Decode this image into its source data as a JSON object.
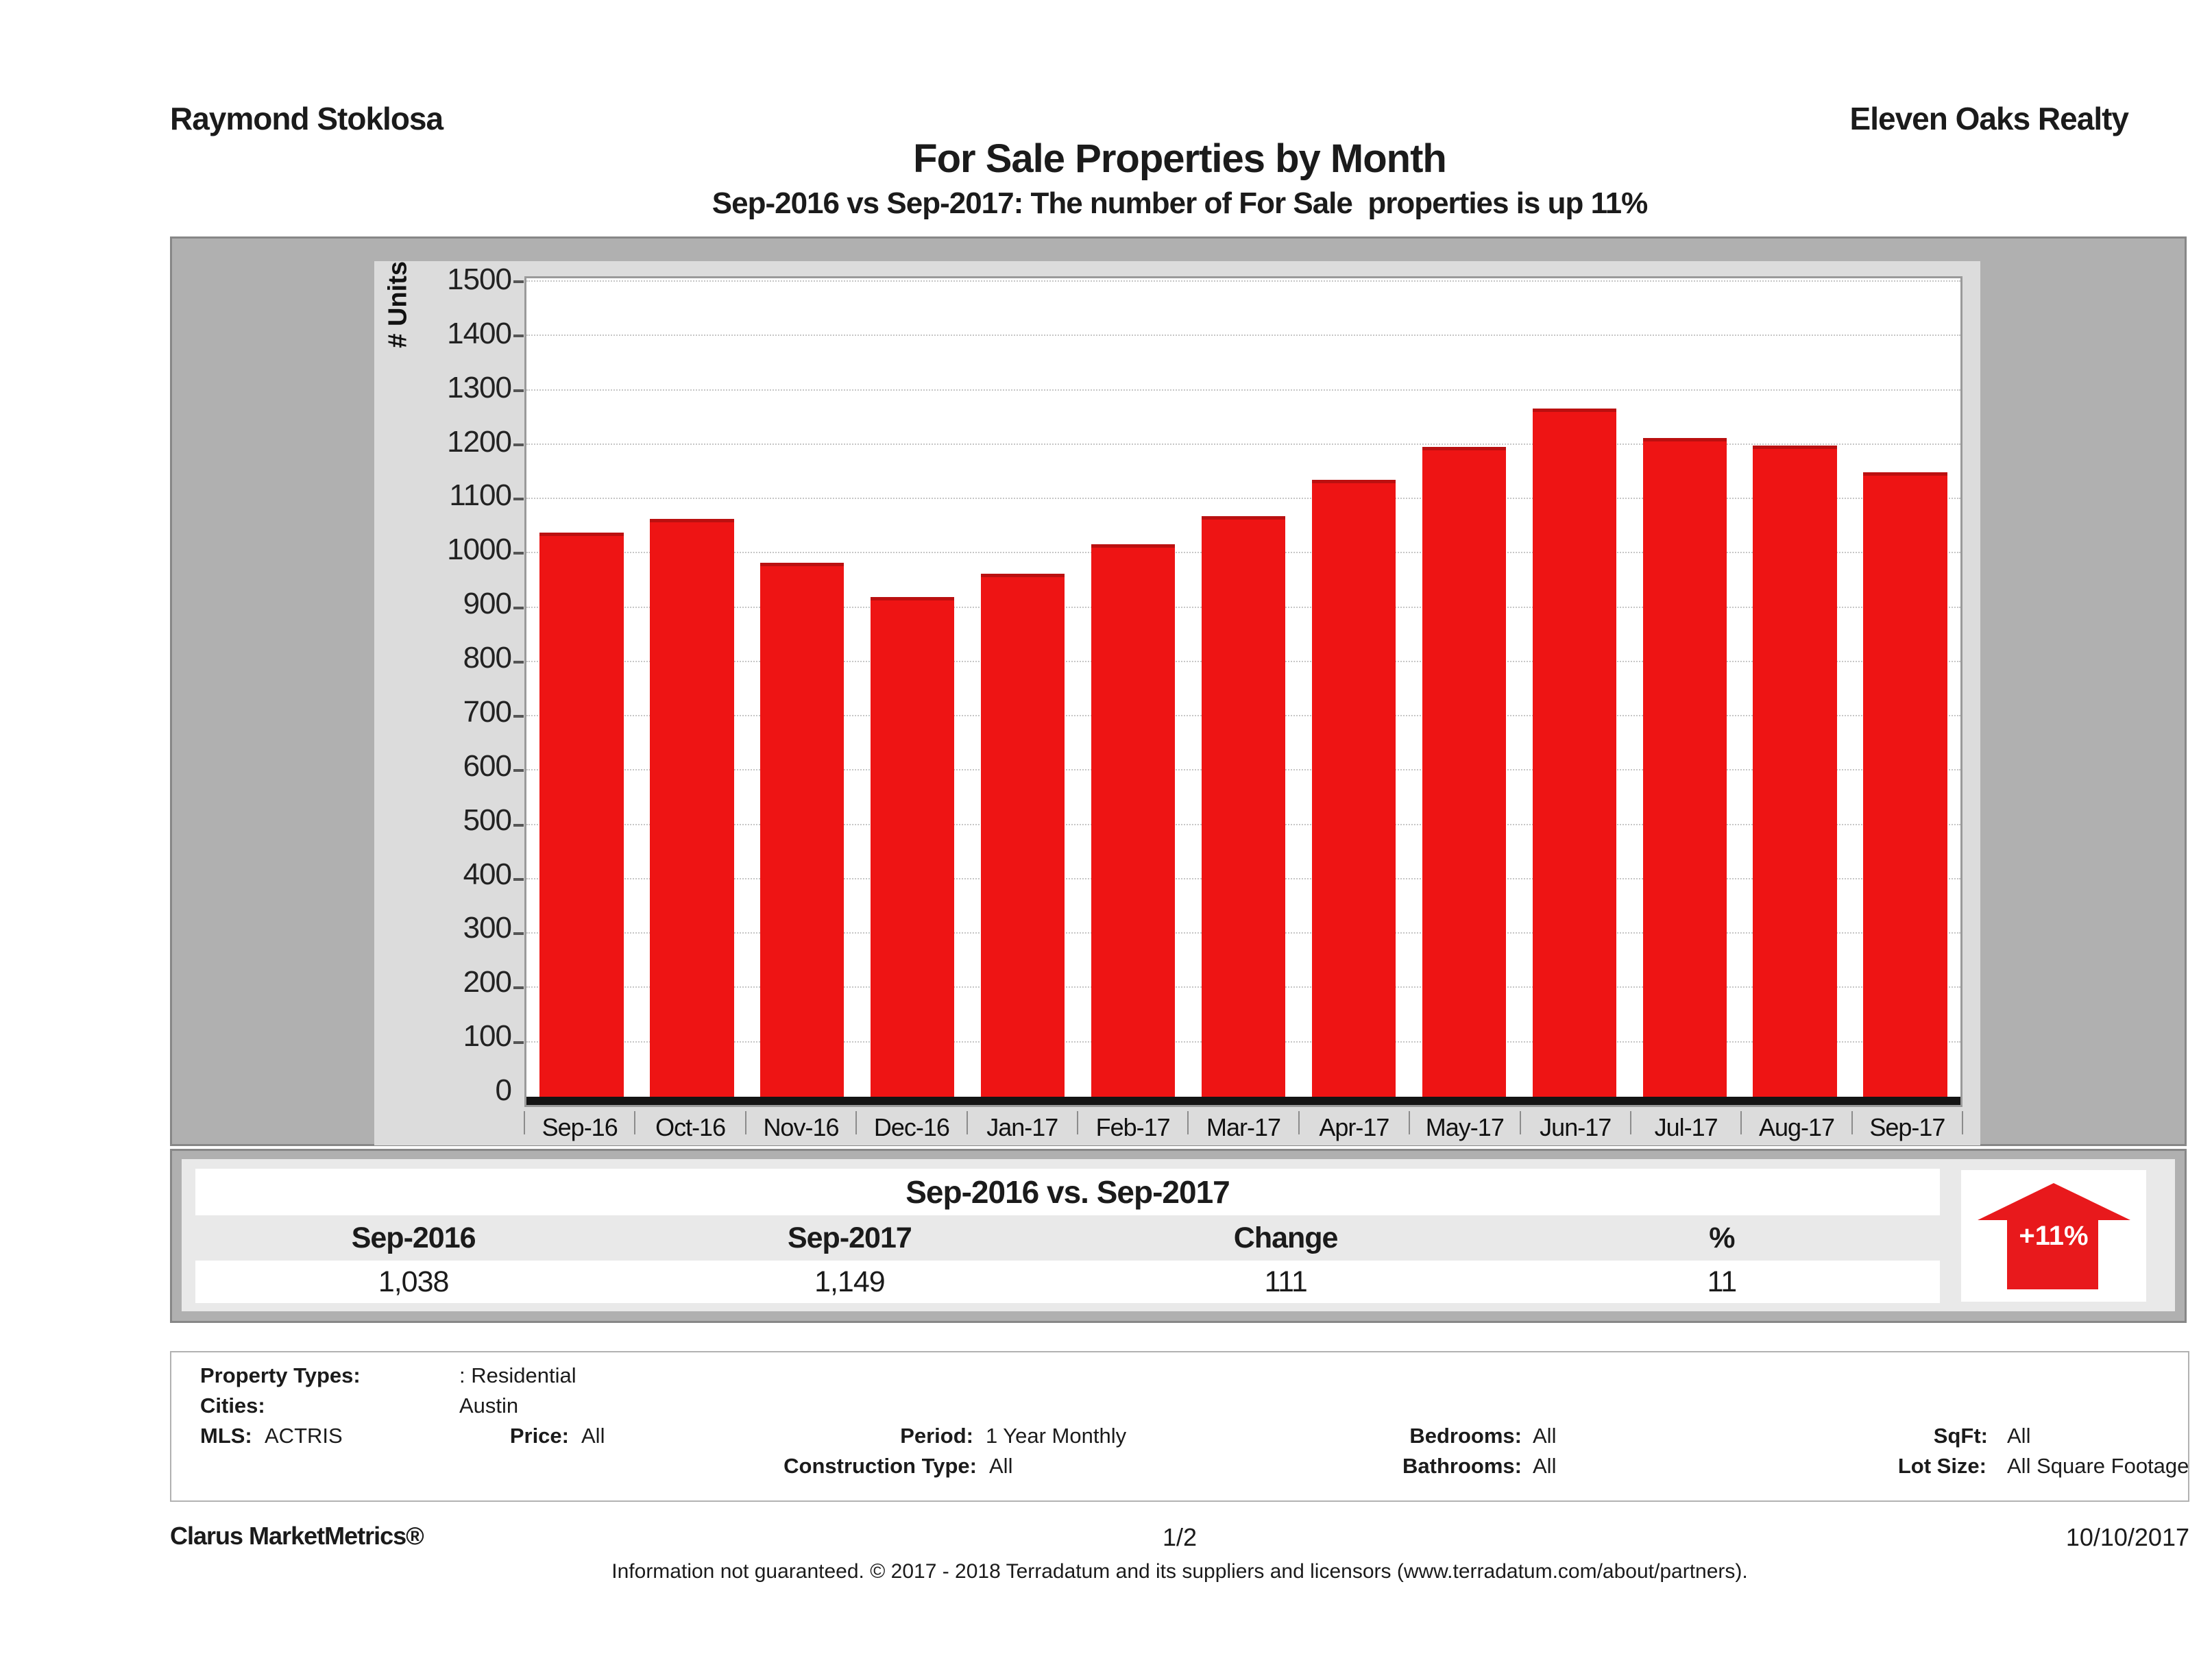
{
  "header": {
    "agent_name": "Raymond Stoklosa",
    "company_name": "Eleven Oaks Realty",
    "title": "For Sale Properties by Month",
    "subtitle": "Sep-2016 vs Sep-2017: The number of For Sale  properties is up 11%"
  },
  "chart_data": {
    "type": "bar",
    "title": "For Sale Properties by Month",
    "xlabel": "",
    "ylabel": "# Units",
    "ylim": [
      0,
      1500
    ],
    "ytick_step": 100,
    "grid": true,
    "legend_position": "none",
    "bar_color": "#ee1414",
    "categories": [
      "Sep-16",
      "Oct-16",
      "Nov-16",
      "Dec-16",
      "Jan-17",
      "Feb-17",
      "Mar-17",
      "Apr-17",
      "May-17",
      "Jun-17",
      "Jul-17",
      "Aug-17",
      "Sep-17"
    ],
    "values": [
      1038,
      1063,
      983,
      920,
      963,
      1017,
      1068,
      1136,
      1196,
      1267,
      1212,
      1199,
      1149
    ]
  },
  "summary_table": {
    "title": "Sep-2016 vs. Sep-2017",
    "columns": [
      "Sep-2016",
      "Sep-2017",
      "Change",
      "%"
    ],
    "values": [
      "1,038",
      "1,149",
      "111",
      "11"
    ]
  },
  "change_badge": {
    "label": "+11%",
    "direction": "up",
    "color": "#e8191c"
  },
  "filters": {
    "property_types_label": "Property Types:",
    "property_types_value": ": Residential",
    "cities_label": "Cities:",
    "cities_value": "Austin",
    "mls_label": "MLS:",
    "mls_value": "ACTRIS",
    "price_label": "Price:",
    "price_value": "All",
    "period_label": "Period:",
    "period_value": "1 Year Monthly",
    "bedrooms_label": "Bedrooms:",
    "bedrooms_value": "All",
    "sqft_label": "SqFt:",
    "sqft_value": "All",
    "construction_type_label": "Construction Type:",
    "construction_type_value": "All",
    "bathrooms_label": "Bathrooms:",
    "bathrooms_value": "All",
    "lot_size_label": "Lot Size:",
    "lot_size_value": "All Square Footage"
  },
  "footer": {
    "product": "Clarus MarketMetrics®",
    "page": "1/2",
    "date": "10/10/2017",
    "disclaimer": "Information not guaranteed. © 2017 - 2018 Terradatum and its suppliers and licensors (www.terradatum.com/about/partners)."
  },
  "colors": {
    "bar_fill": "#ee1414",
    "bar_top_edge": "#bb1010",
    "chart_frame": "#b0b0b0",
    "chart_panel": "#dcdcdc",
    "table_band": "#e9e9e9",
    "axis_line": "#141414",
    "arrow_red": "#e8191c"
  }
}
